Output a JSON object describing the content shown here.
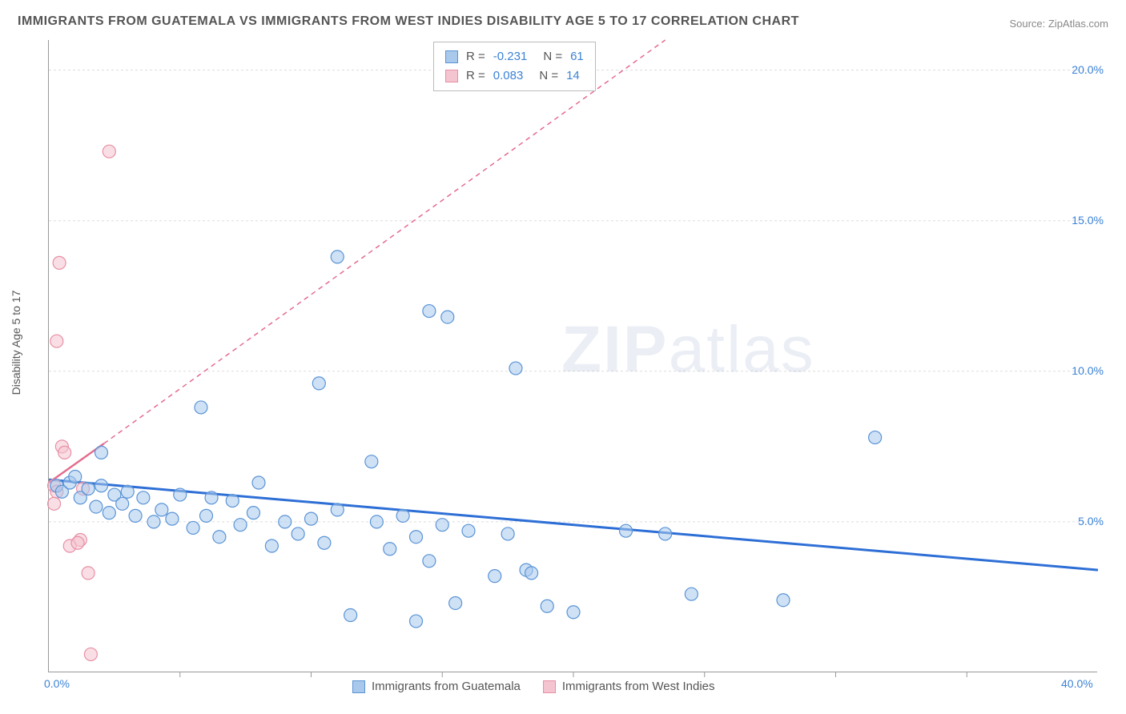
{
  "title": "IMMIGRANTS FROM GUATEMALA VS IMMIGRANTS FROM WEST INDIES DISABILITY AGE 5 TO 17 CORRELATION CHART",
  "source_label": "Source: ",
  "source_value": "ZipAtlas.com",
  "y_axis_label": "Disability Age 5 to 17",
  "watermark_bold": "ZIP",
  "watermark_rest": "atlas",
  "chart": {
    "type": "scatter",
    "background_color": "#ffffff",
    "grid_color": "#dddddd",
    "axis_color": "#999999",
    "xlim": [
      0,
      40
    ],
    "ylim": [
      0,
      21
    ],
    "y_ticks": [
      5,
      10,
      15,
      20
    ],
    "y_tick_labels": [
      "5.0%",
      "10.0%",
      "15.0%",
      "20.0%"
    ],
    "x_tick_labels": {
      "left": "0.0%",
      "right": "40.0%"
    },
    "x_minor_ticks": [
      5,
      10,
      15,
      20,
      25,
      30,
      35
    ],
    "marker_radius": 8,
    "marker_opacity": 0.55,
    "series": [
      {
        "name": "Immigrants from Guatemala",
        "color_fill": "#a8c8ec",
        "color_stroke": "#5a94d6",
        "R": "-0.231",
        "N": "61",
        "trend_color": "#2e6fd6",
        "trend_dash": "none",
        "trend_width": 3,
        "trend": {
          "x1": 0,
          "y1": 6.4,
          "x2": 40,
          "y2": 3.4
        },
        "points": [
          [
            0.3,
            6.2
          ],
          [
            0.5,
            6.0
          ],
          [
            0.8,
            6.3
          ],
          [
            1.0,
            6.5
          ],
          [
            1.2,
            5.8
          ],
          [
            1.5,
            6.1
          ],
          [
            1.8,
            5.5
          ],
          [
            2.0,
            6.2
          ],
          [
            2.3,
            5.3
          ],
          [
            2.5,
            5.9
          ],
          [
            2.8,
            5.6
          ],
          [
            3.0,
            6.0
          ],
          [
            3.3,
            5.2
          ],
          [
            3.6,
            5.8
          ],
          [
            4.0,
            5.0
          ],
          [
            4.3,
            5.4
          ],
          [
            4.7,
            5.1
          ],
          [
            5.0,
            5.9
          ],
          [
            2.0,
            7.3
          ],
          [
            5.5,
            4.8
          ],
          [
            6.0,
            5.2
          ],
          [
            6.2,
            5.8
          ],
          [
            5.8,
            8.8
          ],
          [
            6.5,
            4.5
          ],
          [
            7.0,
            5.7
          ],
          [
            7.3,
            4.9
          ],
          [
            7.8,
            5.3
          ],
          [
            8.0,
            6.3
          ],
          [
            8.5,
            4.2
          ],
          [
            10.3,
            9.6
          ],
          [
            9.0,
            5.0
          ],
          [
            9.5,
            4.6
          ],
          [
            10.0,
            5.1
          ],
          [
            10.5,
            4.3
          ],
          [
            11.0,
            5.4
          ],
          [
            11.5,
            1.9
          ],
          [
            11.0,
            13.8
          ],
          [
            12.3,
            7.0
          ],
          [
            12.5,
            5.0
          ],
          [
            13.0,
            4.1
          ],
          [
            13.5,
            5.2
          ],
          [
            14.0,
            4.5
          ],
          [
            14.0,
            1.7
          ],
          [
            14.5,
            3.7
          ],
          [
            15.0,
            4.9
          ],
          [
            14.5,
            12.0
          ],
          [
            15.2,
            11.8
          ],
          [
            15.5,
            2.3
          ],
          [
            16.0,
            4.7
          ],
          [
            17.0,
            3.2
          ],
          [
            17.5,
            4.6
          ],
          [
            18.2,
            3.4
          ],
          [
            18.4,
            3.3
          ],
          [
            19.0,
            2.2
          ],
          [
            20.0,
            2.0
          ],
          [
            17.8,
            10.1
          ],
          [
            22.0,
            4.7
          ],
          [
            23.5,
            4.6
          ],
          [
            24.5,
            2.6
          ],
          [
            28.0,
            2.4
          ],
          [
            31.5,
            7.8
          ]
        ]
      },
      {
        "name": "Immigrants from West Indies",
        "color_fill": "#f4c5d0",
        "color_stroke": "#e88fa6",
        "R": "0.083",
        "N": "14",
        "trend_color": "#e46c8f",
        "trend_dash": "6,5",
        "trend_width": 1.5,
        "trend_solid": {
          "x1": 0,
          "y1": 6.3,
          "x2": 2.1,
          "y2": 7.6
        },
        "trend_dashed": {
          "x1": 2.1,
          "y1": 7.6,
          "x2": 23.5,
          "y2": 21
        },
        "points": [
          [
            0.2,
            6.2
          ],
          [
            0.3,
            6.0
          ],
          [
            0.2,
            5.6
          ],
          [
            0.5,
            7.5
          ],
          [
            0.6,
            7.3
          ],
          [
            0.3,
            11.0
          ],
          [
            0.4,
            13.6
          ],
          [
            2.3,
            17.3
          ],
          [
            0.8,
            4.2
          ],
          [
            1.2,
            4.4
          ],
          [
            1.1,
            4.3
          ],
          [
            1.5,
            3.3
          ],
          [
            1.6,
            0.6
          ],
          [
            1.3,
            6.1
          ]
        ]
      }
    ]
  },
  "bottom_legend": [
    {
      "label": "Immigrants from Guatemala",
      "fill": "#a8c8ec",
      "stroke": "#5a94d6"
    },
    {
      "label": "Immigrants from West Indies",
      "fill": "#f4c5d0",
      "stroke": "#e88fa6"
    }
  ]
}
